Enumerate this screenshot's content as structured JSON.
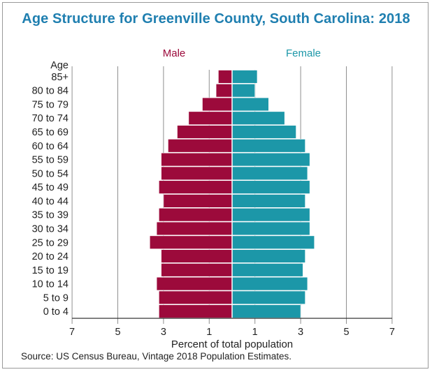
{
  "chart_data": {
    "type": "bar",
    "subtype": "population-pyramid",
    "title": "Age Structure for Greenville County, South Carolina: 2018",
    "ylabel": "Age",
    "xlabel": "Percent of total population",
    "xlim": [
      -7,
      7
    ],
    "xticks": [
      -7,
      -5,
      -3,
      -1,
      1,
      3,
      5,
      7
    ],
    "xtick_labels": [
      "7",
      "5",
      "3",
      "1",
      "1",
      "3",
      "5",
      "7"
    ],
    "categories": [
      "85+",
      "80 to 84",
      "75 to 79",
      "70 to 74",
      "65 to 69",
      "60 to 64",
      "55 to 59",
      "50 to 54",
      "45 to 49",
      "40 to 44",
      "35 to 39",
      "30 to 34",
      "25 to 29",
      "20 to 24",
      "15 to 19",
      "10 to 14",
      "5 to 9",
      "0 to 4"
    ],
    "series": [
      {
        "name": "Male",
        "color": "#9c0a3b",
        "values": [
          0.6,
          0.7,
          1.3,
          1.9,
          2.4,
          2.8,
          3.1,
          3.1,
          3.2,
          3.0,
          3.2,
          3.3,
          3.6,
          3.1,
          3.1,
          3.3,
          3.2,
          3.2
        ]
      },
      {
        "name": "Female",
        "color": "#1c97a8",
        "values": [
          1.1,
          1.0,
          1.6,
          2.3,
          2.8,
          3.2,
          3.4,
          3.3,
          3.4,
          3.2,
          3.4,
          3.4,
          3.6,
          3.2,
          3.1,
          3.3,
          3.2,
          3.0
        ]
      }
    ],
    "source": "Source: US Census Bureau, Vintage 2018 Population Estimates."
  }
}
